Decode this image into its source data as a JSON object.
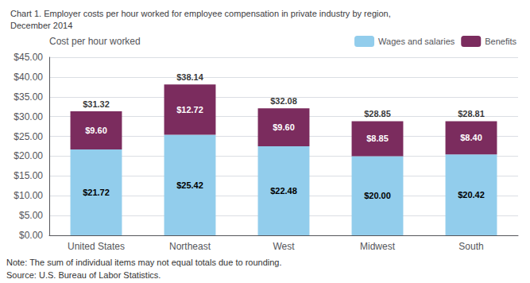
{
  "chart_data": {
    "type": "bar",
    "title": "Chart 1. Employer costs per hour worked for employee compensation in private industry by region,\nDecember 2014",
    "ylabel": "Cost per hour worked",
    "annotations": [
      "Note: The sum of individual items may not equal totals due to rounding.",
      "Source: U.S. Bureau of Labor Statistics."
    ],
    "categories": [
      "United States",
      "Northeast",
      "West",
      "Midwest",
      "South"
    ],
    "series": [
      {
        "name": "Wages and salaries",
        "color": "#92CDEC",
        "values": [
          21.72,
          25.42,
          22.48,
          20.0,
          20.42
        ],
        "value_labels": [
          "$21.72",
          "$25.42",
          "$22.48",
          "$20.00",
          "$20.42"
        ]
      },
      {
        "name": "Benefits",
        "color": "#7B2C5E",
        "values": [
          9.6,
          12.72,
          9.6,
          8.85,
          8.4
        ],
        "value_labels": [
          "$9.60",
          "$12.72",
          "$9.60",
          "$8.85",
          "$8.40"
        ]
      }
    ],
    "totals": [
      31.32,
      38.14,
      32.08,
      28.85,
      28.81
    ],
    "total_labels": [
      "$31.32",
      "$38.14",
      "$32.08",
      "$28.85",
      "$28.81"
    ],
    "stacked": true,
    "data_labels": true,
    "legend": "upper right",
    "grid": true,
    "ylim": [
      0,
      45
    ],
    "yticks": [
      {
        "value": 0,
        "label": "$0.00"
      },
      {
        "value": 5,
        "label": "$5.00"
      },
      {
        "value": 10,
        "label": "$10.00"
      },
      {
        "value": 15,
        "label": "$15.00"
      },
      {
        "value": 20,
        "label": "$20.00"
      },
      {
        "value": 25,
        "label": "$25.00"
      },
      {
        "value": 30,
        "label": "$30.00"
      },
      {
        "value": 35,
        "label": "$35.00"
      },
      {
        "value": 40,
        "label": "$40.00"
      },
      {
        "value": 45,
        "label": "$45.00"
      }
    ]
  }
}
